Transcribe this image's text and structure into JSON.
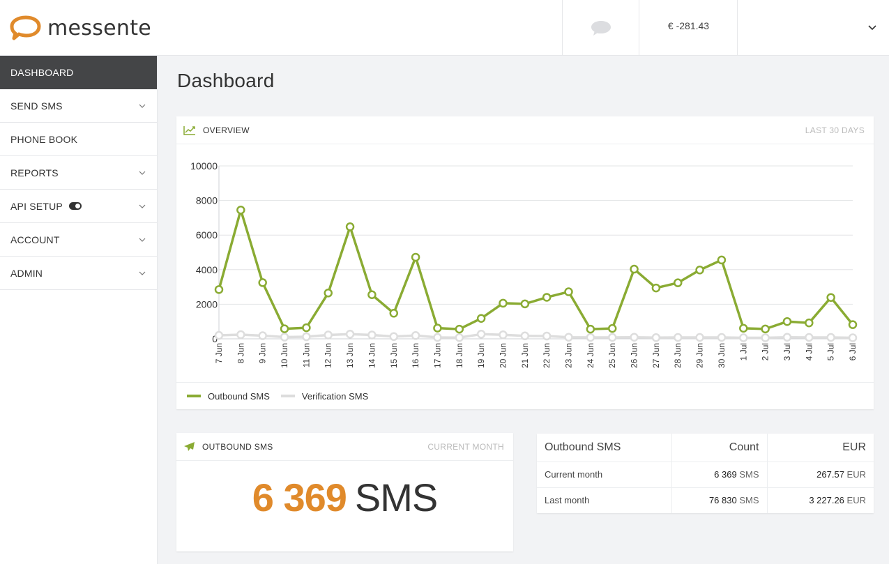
{
  "brand": {
    "name": "messente"
  },
  "header": {
    "balance": "€ -281.43"
  },
  "sidebar": {
    "items": [
      {
        "label": "DASHBOARD"
      },
      {
        "label": "SEND SMS"
      },
      {
        "label": "PHONE BOOK"
      },
      {
        "label": "REPORTS"
      },
      {
        "label": "API SETUP"
      },
      {
        "label": "ACCOUNT"
      },
      {
        "label": "ADMIN"
      }
    ]
  },
  "page": {
    "title": "Dashboard"
  },
  "overview": {
    "title": "OVERVIEW",
    "range": "LAST 30 DAYS"
  },
  "chart_data": {
    "type": "line",
    "categories": [
      "7 Jun",
      "8 Jun",
      "9 Jun",
      "10 Jun",
      "11 Jun",
      "12 Jun",
      "13 Jun",
      "14 Jun",
      "15 Jun",
      "16 Jun",
      "17 Jun",
      "18 Jun",
      "19 Jun",
      "20 Jun",
      "21 Jun",
      "22 Jun",
      "23 Jun",
      "24 Jun",
      "25 Jun",
      "26 Jun",
      "27 Jun",
      "28 Jun",
      "29 Jun",
      "30 Jun",
      "1 Jul",
      "2 Jul",
      "3 Jul",
      "4 Jul",
      "5 Jul",
      "6 Jul"
    ],
    "y_ticks": [
      "10000",
      "8000",
      "6000",
      "4000",
      "2000",
      "0"
    ],
    "ylim": [
      0,
      10000
    ],
    "grid": true,
    "legend_position": "bottom-left",
    "series": [
      {
        "name": "Outbound SMS",
        "color": "#8aab33",
        "values": [
          2850,
          7450,
          3250,
          580,
          640,
          2650,
          6480,
          2550,
          1480,
          4720,
          620,
          560,
          1180,
          2060,
          2020,
          2400,
          2720,
          560,
          600,
          4030,
          2940,
          3240,
          3980,
          4560,
          610,
          570,
          1000,
          920,
          2390,
          820
        ]
      },
      {
        "name": "Verification SMS",
        "color": "#dddddd",
        "values": [
          200,
          240,
          180,
          100,
          120,
          220,
          270,
          220,
          130,
          190,
          80,
          70,
          270,
          230,
          170,
          160,
          90,
          80,
          80,
          90,
          70,
          80,
          80,
          80,
          60,
          60,
          90,
          80,
          80,
          60
        ]
      }
    ]
  },
  "outbound_card": {
    "title": "OUTBOUND SMS",
    "range": "CURRENT MONTH",
    "value": "6 369",
    "unit": "SMS"
  },
  "stats": {
    "headers": [
      "Outbound SMS",
      "Count",
      "EUR"
    ],
    "rows": [
      {
        "label": "Current month",
        "count": "6 369",
        "count_unit": "SMS",
        "eur": "267.57",
        "eur_unit": "EUR"
      },
      {
        "label": "Last month",
        "count": "76 830",
        "count_unit": "SMS",
        "eur": "3 227.26",
        "eur_unit": "EUR"
      }
    ]
  }
}
